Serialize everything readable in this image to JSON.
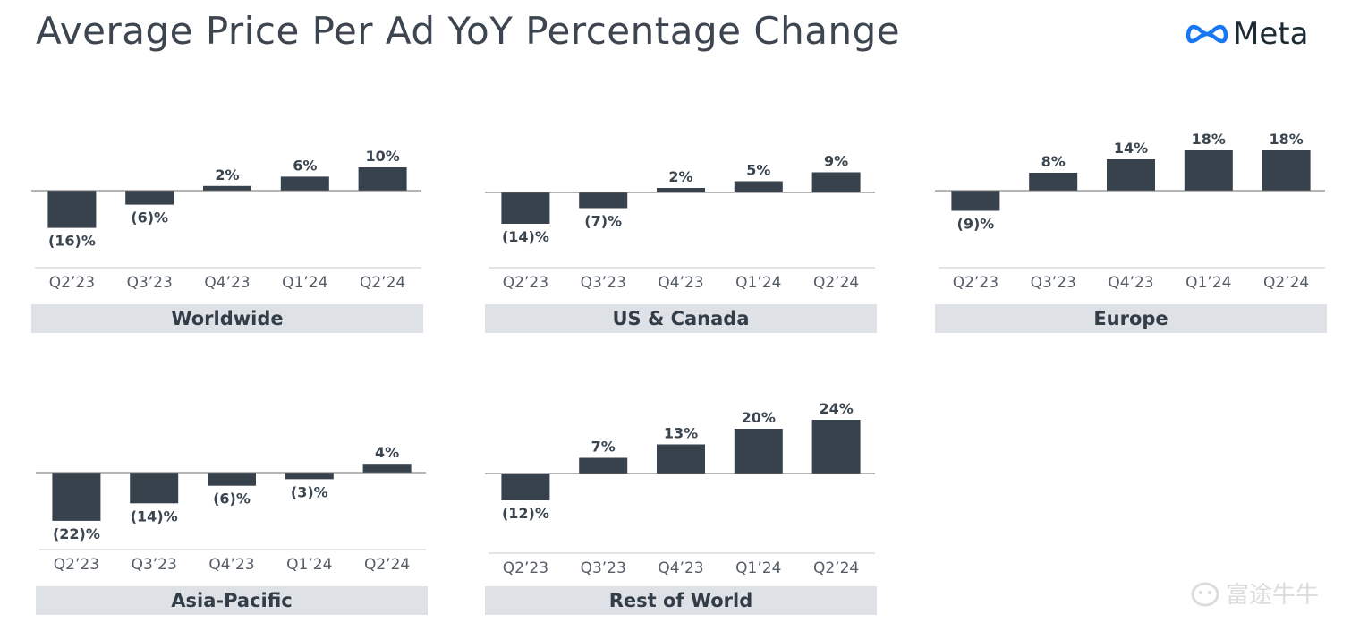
{
  "title": "Average Price Per Ad YoY Percentage Change",
  "logo": {
    "text": "Meta",
    "icon": "meta-infinity-logo"
  },
  "colors": {
    "bar": "#37424d",
    "axis": "#6b6b6b",
    "label": "#3a4550",
    "banner": "#dee2e6"
  },
  "chart_data": [
    {
      "type": "bar",
      "title": "Worldwide",
      "categories": [
        "Q2’23",
        "Q3’23",
        "Q4’23",
        "Q1’24",
        "Q2’24"
      ],
      "values": [
        -16,
        -6,
        2,
        6,
        10
      ],
      "labels": [
        "(16)%",
        "(6)%",
        "2%",
        "6%",
        "10%"
      ]
    },
    {
      "type": "bar",
      "title": "US & Canada",
      "categories": [
        "Q2’23",
        "Q3’23",
        "Q4’23",
        "Q1’24",
        "Q2’24"
      ],
      "values": [
        -14,
        -7,
        2,
        5,
        9
      ],
      "labels": [
        "(14)%",
        "(7)%",
        "2%",
        "5%",
        "9%"
      ]
    },
    {
      "type": "bar",
      "title": "Europe",
      "categories": [
        "Q2’23",
        "Q3’23",
        "Q4’23",
        "Q1’24",
        "Q2’24"
      ],
      "values": [
        -9,
        8,
        14,
        18,
        18
      ],
      "labels": [
        "(9)%",
        "8%",
        "14%",
        "18%",
        "18%"
      ]
    },
    {
      "type": "bar",
      "title": "Asia-Pacific",
      "categories": [
        "Q2’23",
        "Q3’23",
        "Q4’23",
        "Q1’24",
        "Q2’24"
      ],
      "values": [
        -22,
        -14,
        -6,
        -3,
        4
      ],
      "labels": [
        "(22)%",
        "(14)%",
        "(6)%",
        "(3)%",
        "4%"
      ]
    },
    {
      "type": "bar",
      "title": "Rest of World",
      "categories": [
        "Q2’23",
        "Q3’23",
        "Q4’23",
        "Q1’24",
        "Q2’24"
      ],
      "values": [
        -12,
        7,
        13,
        20,
        24
      ],
      "labels": [
        "(12)%",
        "7%",
        "13%",
        "20%",
        "24%"
      ]
    }
  ],
  "watermark": "富途牛牛"
}
